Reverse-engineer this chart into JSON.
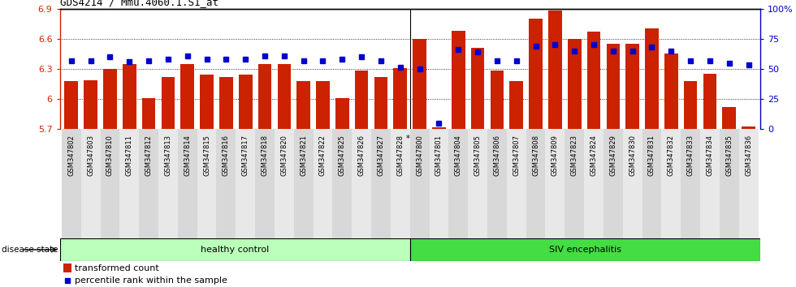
{
  "title": "GDS4214 / Mmu.4060.1.S1_at",
  "samples": [
    "GSM347802",
    "GSM347803",
    "GSM347810",
    "GSM347811",
    "GSM347812",
    "GSM347813",
    "GSM347814",
    "GSM347815",
    "GSM347816",
    "GSM347817",
    "GSM347818",
    "GSM347820",
    "GSM347821",
    "GSM347822",
    "GSM347825",
    "GSM347826",
    "GSM347827",
    "GSM347828",
    "GSM347800",
    "GSM347801",
    "GSM347804",
    "GSM347805",
    "GSM347806",
    "GSM347807",
    "GSM347808",
    "GSM347809",
    "GSM347823",
    "GSM347824",
    "GSM347829",
    "GSM347830",
    "GSM347831",
    "GSM347832",
    "GSM347833",
    "GSM347834",
    "GSM347835",
    "GSM347836"
  ],
  "bar_values": [
    6.18,
    6.19,
    6.3,
    6.35,
    6.01,
    6.22,
    6.35,
    6.24,
    6.22,
    6.24,
    6.35,
    6.35,
    6.18,
    6.18,
    6.01,
    6.28,
    6.22,
    6.31,
    6.6,
    5.72,
    6.68,
    6.51,
    6.28,
    6.18,
    6.8,
    6.88,
    6.6,
    6.67,
    6.55,
    6.55,
    6.7,
    6.45,
    6.18,
    6.25,
    5.92,
    5.73
  ],
  "percentile_values": [
    57,
    57,
    60,
    56,
    57,
    58,
    61,
    58,
    58,
    58,
    61,
    61,
    57,
    57,
    58,
    60,
    57,
    51,
    50,
    5,
    66,
    64,
    57,
    57,
    69,
    70,
    65,
    70,
    65,
    65,
    68,
    65,
    57,
    57,
    55,
    53
  ],
  "healthy_count": 18,
  "ymin": 5.7,
  "ymax": 6.9,
  "yticks": [
    5.7,
    6.0,
    6.3,
    6.6,
    6.9
  ],
  "ytick_labels": [
    "5.7",
    "6",
    "6.3",
    "6.6",
    "6.9"
  ],
  "right_yticks": [
    0,
    25,
    50,
    75,
    100
  ],
  "right_ytick_labels": [
    "0",
    "25",
    "50",
    "75",
    "100%"
  ],
  "bar_color": "#cc2200",
  "dot_color": "#0000cc",
  "healthy_color": "#bbffbb",
  "siv_color": "#44dd44",
  "healthy_label": "healthy control",
  "siv_label": "SIV encephalitis",
  "disease_label": "disease state",
  "legend_bar": "transformed count",
  "legend_dot": "percentile rank within the sample",
  "bg_color": "#f0f0f0"
}
